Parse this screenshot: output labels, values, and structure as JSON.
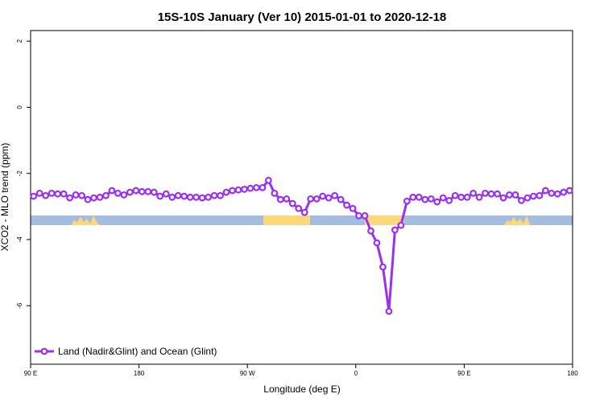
{
  "chart_data": {
    "type": "line",
    "title": "15S-10S January (Ver 10)   2015-01-01 to 2020-12-18",
    "x_label": "Longitude (deg E)",
    "y_label": "XCO2 - MLO trend (ppm)",
    "xlim": [
      90,
      540
    ],
    "ylim": [
      -7.77,
      2.32
    ],
    "xticks": [
      {
        "value": 90,
        "label": "90 E"
      },
      {
        "value": 180,
        "label": "180"
      },
      {
        "value": 270,
        "label": "90 W"
      },
      {
        "value": 360,
        "label": "0"
      },
      {
        "value": 450,
        "label": "90 E"
      },
      {
        "value": 540,
        "label": "180"
      }
    ],
    "yticks": [
      2,
      0,
      -2,
      -4,
      -6
    ],
    "legend": "bottomleft",
    "x": [
      92.5,
      97.5,
      102.5,
      107.5,
      112.5,
      117.5,
      122.5,
      127.5,
      132.5,
      137.5,
      142.5,
      147.5,
      152.5,
      157.5,
      162.5,
      167.5,
      172.5,
      177.5,
      182.5,
      187.5,
      192.5,
      197.5,
      202.5,
      207.5,
      212.5,
      217.5,
      222.5,
      227.5,
      232.5,
      237.5,
      242.5,
      247.5,
      252.5,
      257.5,
      262.5,
      267.5,
      272.5,
      277.5,
      282.5,
      287.5,
      292.5,
      297.5,
      302.5,
      307.5,
      312.5,
      317.5,
      322.5,
      327.5,
      332.5,
      337.5,
      342.5,
      347.5,
      352.5,
      357.5,
      362.5,
      367.5,
      372.5,
      377.5,
      382.5,
      387.5,
      392.5,
      397.5,
      402.5,
      407.5,
      412.5,
      417.5,
      422.5,
      427.5,
      432.5,
      437.5,
      442.5,
      447.5,
      452.5,
      457.5,
      462.5,
      467.5,
      472.5,
      477.5,
      482.5,
      487.5,
      492.5,
      497.5,
      502.5,
      507.5,
      512.5,
      517.5,
      522.5,
      527.5,
      532.5,
      537.5
    ],
    "series": [
      {
        "name": "Land (Nadir&Glint) and Ocean (Glint)",
        "color": "#9b30f0",
        "values": [
          -2.69,
          -2.6,
          -2.67,
          -2.6,
          -2.62,
          -2.62,
          -2.74,
          -2.65,
          -2.67,
          -2.79,
          -2.74,
          -2.72,
          -2.67,
          -2.52,
          -2.6,
          -2.65,
          -2.57,
          -2.52,
          -2.55,
          -2.55,
          -2.57,
          -2.69,
          -2.62,
          -2.72,
          -2.67,
          -2.69,
          -2.72,
          -2.72,
          -2.74,
          -2.72,
          -2.67,
          -2.67,
          -2.57,
          -2.52,
          -2.5,
          -2.48,
          -2.45,
          -2.43,
          -2.43,
          -2.21,
          -2.6,
          -2.79,
          -2.77,
          -2.91,
          -3.06,
          -3.18,
          -2.77,
          -2.77,
          -2.69,
          -2.74,
          -2.67,
          -2.79,
          -2.96,
          -3.06,
          -3.28,
          -3.28,
          -3.74,
          -4.1,
          -4.83,
          -6.17,
          -3.71,
          -3.57,
          -2.84,
          -2.72,
          -2.72,
          -2.79,
          -2.77,
          -2.86,
          -2.74,
          -2.82,
          -2.67,
          -2.72,
          -2.72,
          -2.6,
          -2.72,
          -2.6,
          -2.62,
          -2.62,
          -2.74,
          -2.65,
          -2.65,
          -2.82,
          -2.74,
          -2.69,
          -2.67,
          -2.52,
          -2.6,
          -2.62,
          -2.57,
          -2.52
        ]
      }
    ]
  }
}
